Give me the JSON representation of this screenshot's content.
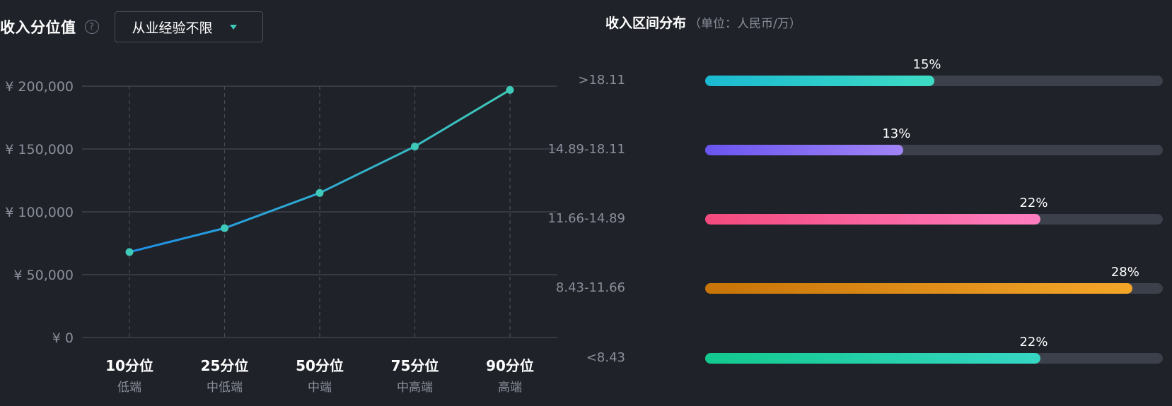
{
  "left_panel": {
    "title": "收入分位值",
    "help_icon": "?",
    "dropdown_value": "从业经验不限"
  },
  "chart_data": [
    {
      "type": "line",
      "categories": [
        "10分位",
        "25分位",
        "50分位",
        "75分位",
        "90分位"
      ],
      "sub_labels": [
        "低端",
        "中低端",
        "中端",
        "中高端",
        "高端"
      ],
      "values": [
        68000,
        87000,
        115000,
        152000,
        197000
      ],
      "ylim": [
        0,
        200000
      ],
      "yticks": [
        0,
        50000,
        100000,
        150000,
        200000
      ],
      "ytick_labels": [
        "¥ 0",
        "¥ 50,000",
        "¥ 100,000",
        "¥ 150,000",
        "¥ 200,000"
      ],
      "grid": true,
      "line_color_start": "#1e90e8",
      "line_color_end": "#3fc9b8",
      "point_color": "#3fc9b8"
    },
    {
      "type": "bar",
      "title": "收入区间分布",
      "subtitle": "（单位：人民币/万）",
      "categories": [
        ">18.11",
        "14.89-18.11",
        "11.66-14.89",
        "8.43-11.66",
        "<8.43"
      ],
      "values": [
        15,
        13,
        22,
        28,
        22
      ],
      "value_labels": [
        "15%",
        "13%",
        "22%",
        "28%",
        "22%"
      ],
      "xlim": [
        0,
        30
      ],
      "orientation": "horizontal",
      "colors": [
        [
          "#1bb9d0",
          "#3edcc4"
        ],
        [
          "#6a55f0",
          "#a084f5"
        ],
        [
          "#f34a7e",
          "#ff7ec0"
        ],
        [
          "#c77408",
          "#f4a629"
        ],
        [
          "#13c98e",
          "#36d6c3"
        ]
      ]
    }
  ]
}
